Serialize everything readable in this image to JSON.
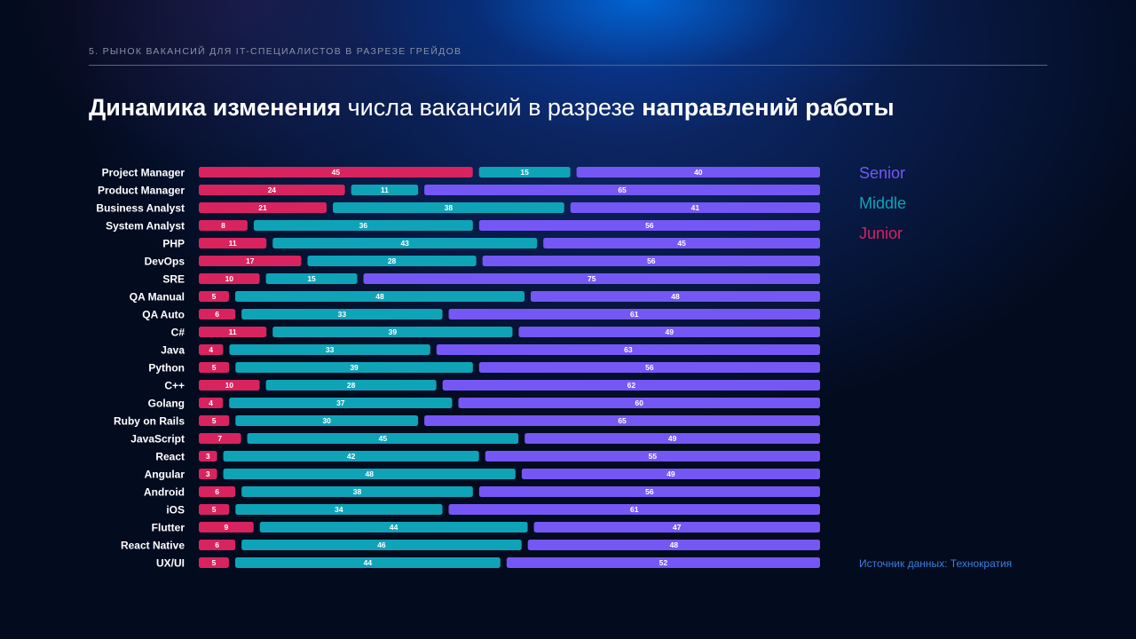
{
  "header": {
    "subtitle": "5. РЫНОК ВАКАНСИЙ ДЛЯ IT-СПЕЦИАЛИСТОВ В РАЗРЕЗЕ ГРЕЙДОВ",
    "title_part1": "Динамика изменения",
    "title_part2": " числа вакансий в разрезе ",
    "title_part3": "направлений работы"
  },
  "legend": {
    "senior": "Senior",
    "middle": "Middle",
    "junior": "Junior"
  },
  "colors": {
    "junior": "#d8235f",
    "middle": "#0fa3b8",
    "senior": "#7557f5"
  },
  "source": "Источник данных: Технократия",
  "chart_data": {
    "type": "bar",
    "orientation": "horizontal",
    "stacked": true,
    "unit": "percent",
    "categories": [
      "Project Manager",
      "Product Manager",
      "Business Analyst",
      "System Analyst",
      "PHP",
      "DevOps",
      "SRE",
      "QA Manual",
      "QA Auto",
      "C#",
      "Java",
      "Python",
      "C++",
      "Golang",
      "Ruby on Rails",
      "JavaScript",
      "React",
      "Angular",
      "Android",
      "iOS",
      "Flutter",
      "React Native",
      "UX/UI"
    ],
    "series": [
      {
        "name": "Junior",
        "values": [
          45,
          24,
          21,
          8,
          11,
          17,
          10,
          5,
          6,
          11,
          4,
          5,
          10,
          4,
          5,
          7,
          3,
          3,
          6,
          5,
          9,
          6,
          5
        ]
      },
      {
        "name": "Middle",
        "values": [
          15,
          11,
          38,
          36,
          43,
          28,
          15,
          48,
          33,
          39,
          33,
          39,
          28,
          37,
          30,
          45,
          42,
          48,
          38,
          34,
          44,
          46,
          44
        ]
      },
      {
        "name": "Senior",
        "values": [
          40,
          65,
          41,
          56,
          45,
          56,
          75,
          48,
          61,
          49,
          63,
          56,
          62,
          60,
          65,
          49,
          55,
          49,
          56,
          61,
          47,
          48,
          52
        ]
      }
    ]
  }
}
